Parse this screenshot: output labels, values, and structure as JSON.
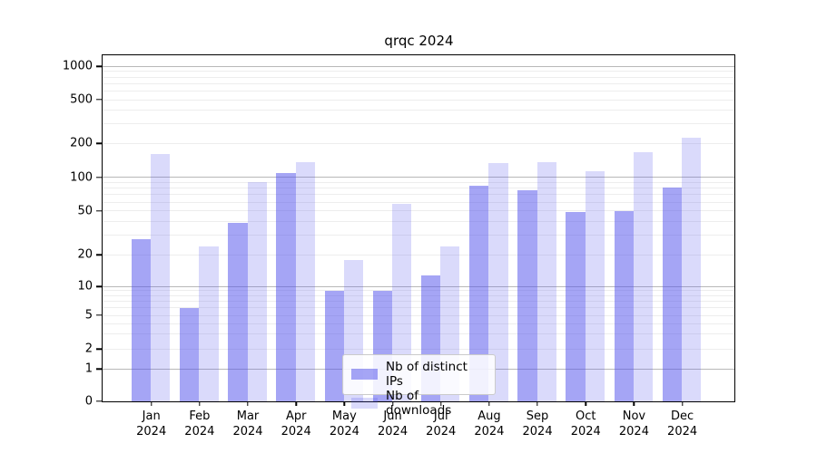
{
  "chart_data": {
    "type": "bar",
    "title": "qrqc 2024",
    "categories": [
      "Jan 2024",
      "Feb 2024",
      "Mar 2024",
      "Apr 2024",
      "May 2024",
      "Jun 2024",
      "Jul 2024",
      "Aug 2024",
      "Sep 2024",
      "Oct 2024",
      "Nov 2024",
      "Dec 2024"
    ],
    "month_labels": [
      "Jan",
      "Feb",
      "Mar",
      "Apr",
      "May",
      "Jun",
      "Jul",
      "Aug",
      "Sep",
      "Oct",
      "Nov",
      "Dec"
    ],
    "year_label": "2024",
    "series": [
      {
        "name": "Nb of distinct IPs",
        "color": "rgba(82,82,235,0.52)",
        "values": [
          28,
          6,
          39,
          111,
          9,
          9,
          13,
          85,
          77,
          49,
          50,
          82
        ]
      },
      {
        "name": "Nb of downloads",
        "color": "rgba(82,82,235,0.21)",
        "values": [
          162,
          24,
          91,
          138,
          18,
          58,
          24,
          136,
          138,
          115,
          168,
          227
        ]
      }
    ],
    "xlabel": "",
    "ylabel": "",
    "yscale": "symlog",
    "ylim": [
      0,
      1250
    ],
    "yticks": [
      0,
      1,
      2,
      5,
      10,
      20,
      50,
      100,
      200,
      500,
      1000
    ],
    "grid": true,
    "legend_position": "lower-center",
    "colors": {
      "axis": "#000000",
      "grid_major": "#b8b8b8",
      "grid_minor": "#ededed",
      "background": "#ffffff",
      "bar_base": "#5252eb"
    }
  }
}
